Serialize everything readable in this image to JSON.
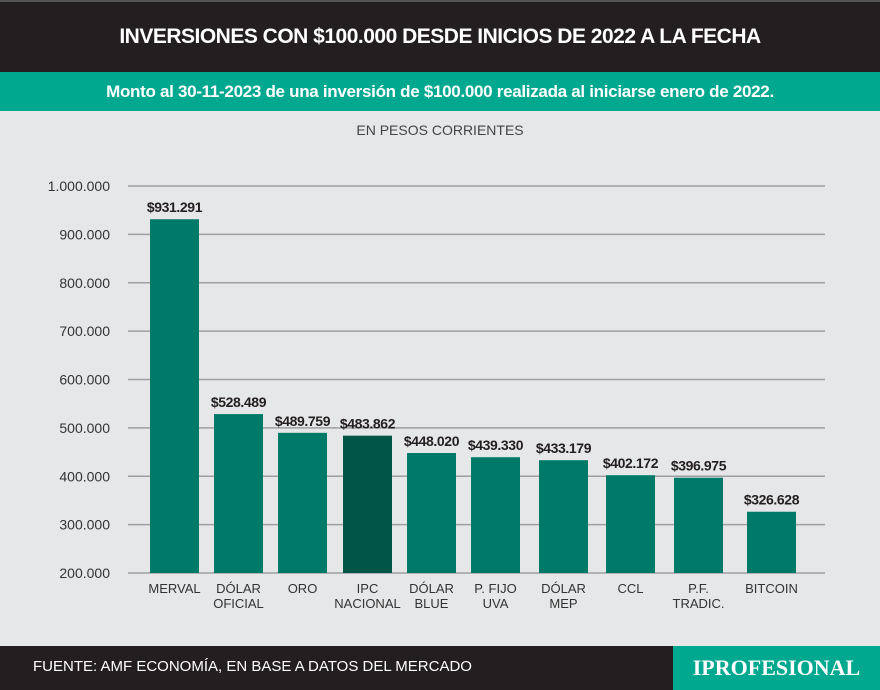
{
  "header": {
    "title": "INVERSIONES CON $100.000 DESDE INICIOS DE 2022 A LA FECHA",
    "subtitle": "Monto al 30-11-2023 de una inversión de $100.000 realizada al iniciarse enero de 2022."
  },
  "chart_data": {
    "type": "bar",
    "title": "INVERSIONES CON $100.000 DESDE INICIOS DE 2022 A LA FECHA",
    "subtitle": "EN PESOS CORRIENTES",
    "categories": [
      [
        "MERVAL"
      ],
      [
        "DÓLAR",
        "OFICIAL"
      ],
      [
        "ORO"
      ],
      [
        "IPC",
        "NACIONAL"
      ],
      [
        "DÓLAR",
        "BLUE"
      ],
      [
        "P. FIJO",
        "UVA"
      ],
      [
        "DÓLAR",
        "MEP"
      ],
      [
        "CCL"
      ],
      [
        "P.F.",
        "TRADIC."
      ],
      [
        "BITCOIN"
      ]
    ],
    "values": [
      931291,
      528489,
      489759,
      483862,
      448020,
      439330,
      433179,
      402172,
      396975,
      326628
    ],
    "data_labels": [
      "$931.291",
      "$528.489",
      "$489.759",
      "$483.862",
      "$448.020",
      "$439.330",
      "$433.179",
      "$402.172",
      "$396.975",
      "$326.628"
    ],
    "ylim": [
      200000,
      1000000
    ],
    "yticks": [
      200000,
      300000,
      400000,
      500000,
      600000,
      700000,
      800000,
      900000,
      1000000
    ],
    "ytick_labels": [
      "200.000",
      "300.000",
      "400.000",
      "500.000",
      "600.000",
      "700.000",
      "800.000",
      "900.000",
      "1.000.000"
    ],
    "grid": true,
    "colors": {
      "bar": "#007a68",
      "highlight": "#005546",
      "highlight_index": 3
    }
  },
  "footer": {
    "source": "FUENTE: AMF ECONOMÍA, EN BASE A DATOS DEL MERCADO",
    "logo": "IPROFESIONAL"
  }
}
